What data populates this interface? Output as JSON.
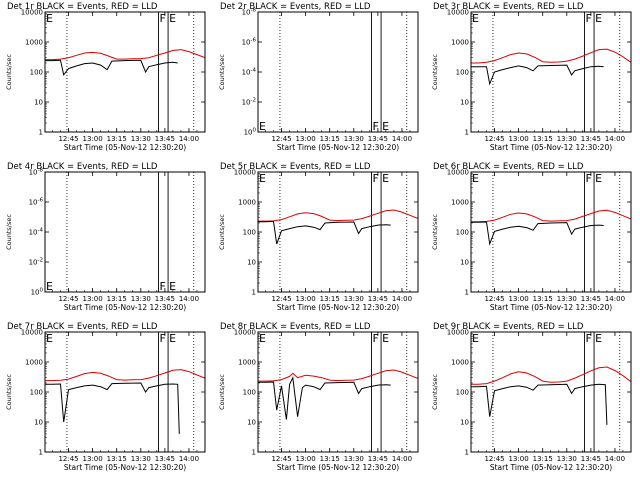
{
  "panel_titles": [
    "Det 1r BLACK = Events, RED = LLD",
    "Det 2r BLACK = Events, RED = LLD",
    "Det 3r BLACK = Events, RED = LLD",
    "Det 4r BLACK = Events, RED = LLD",
    "Det 5r BLACK = Events, RED = LLD",
    "Det 6r BLACK = Events, RED = LLD",
    "Det 7r BLACK = Events, RED = LLD",
    "Det 8r BLACK = Events, RED = LLD",
    "Det 9r BLACK = Events, RED = LLD"
  ],
  "xlabel": "Start Time (05-Nov-12 12:30:20)",
  "ylabel": "Counts/sec",
  "x_tick_labels": [
    "12:45",
    "13:00",
    "13:15",
    "13:30",
    "13:45",
    "14:00"
  ],
  "y_tick_labels_normal": [
    "1",
    "10",
    "100",
    "1000",
    "10000"
  ],
  "y_tick_labels_tiny": [
    "10^0",
    "10^-2",
    "10^-4",
    "10^-6",
    "10^-8"
  ],
  "markers": {
    "flare": "F",
    "end": "E"
  },
  "colors": {
    "events": "#000000",
    "lld": "#e00000",
    "axis": "#000000",
    "background": "#ffffff"
  },
  "chart_data": [
    {
      "type": "line",
      "detector": "1r",
      "title": "Det 1r BLACK = Events, RED = LLD",
      "xlabel": "Start Time (05-Nov-12 12:30:20)",
      "ylabel": "Counts/sec",
      "x_range": [
        "12:30:20",
        "14:10"
      ],
      "y_scale": "log",
      "ylim": [
        1,
        10000
      ],
      "dotted_lines": [
        "12:44",
        "14:03"
      ],
      "solid_lines": [
        "13:41",
        "13:47"
      ],
      "series": [
        {
          "name": "LLD",
          "color": "#e00000",
          "x": [
            "12:30",
            "12:35",
            "12:40",
            "12:45",
            "12:50",
            "12:55",
            "13:00",
            "13:05",
            "13:10",
            "13:15",
            "13:20",
            "13:25",
            "13:30",
            "13:35",
            "13:40",
            "13:45",
            "13:50",
            "13:55",
            "14:00",
            "14:05",
            "14:10"
          ],
          "y": [
            260,
            260,
            270,
            300,
            360,
            430,
            450,
            420,
            340,
            270,
            270,
            275,
            280,
            300,
            360,
            430,
            520,
            560,
            480,
            380,
            300
          ]
        },
        {
          "name": "Events",
          "color": "#000000",
          "x": [
            "12:30",
            "12:35",
            "12:40",
            "12:42",
            "12:45",
            "12:50",
            "12:55",
            "13:00",
            "13:05",
            "13:09",
            "13:12",
            "13:20",
            "13:30",
            "13:33",
            "13:35",
            "13:40",
            "13:45",
            "13:50",
            "13:53"
          ],
          "y": [
            240,
            240,
            245,
            80,
            130,
            160,
            190,
            200,
            170,
            120,
            230,
            240,
            245,
            100,
            150,
            175,
            200,
            210,
            200
          ]
        }
      ]
    },
    {
      "type": "line",
      "detector": "2r",
      "title": "Det 2r BLACK = Events, RED = LLD",
      "xlabel": "Start Time (05-Nov-12 12:30:20)",
      "ylabel": "Counts/sec",
      "x_range": [
        "12:30:20",
        "14:10"
      ],
      "y_scale": "log",
      "ylim": [
        1,
        1e-08
      ],
      "dotted_lines": [
        "12:44",
        "14:03"
      ],
      "solid_lines": [
        "13:41",
        "13:47"
      ],
      "series": []
    },
    {
      "type": "line",
      "detector": "3r",
      "title": "Det 3r BLACK = Events, RED = LLD",
      "xlabel": "Start Time (05-Nov-12 12:30:20)",
      "ylabel": "Counts/sec",
      "x_range": [
        "12:30:20",
        "14:10"
      ],
      "y_scale": "log",
      "ylim": [
        1,
        10000
      ],
      "dotted_lines": [
        "12:44",
        "14:03"
      ],
      "solid_lines": [
        "13:41",
        "13:47"
      ],
      "series": [
        {
          "name": "LLD",
          "color": "#e00000",
          "x": [
            "12:30",
            "12:35",
            "12:40",
            "12:45",
            "12:50",
            "12:55",
            "13:00",
            "13:05",
            "13:10",
            "13:15",
            "13:20",
            "13:25",
            "13:30",
            "13:35",
            "13:40",
            "13:45",
            "13:50",
            "13:55",
            "14:00",
            "14:05",
            "14:10"
          ],
          "y": [
            200,
            200,
            210,
            240,
            300,
            380,
            430,
            400,
            310,
            220,
            210,
            215,
            230,
            270,
            340,
            440,
            560,
            580,
            460,
            320,
            210
          ]
        },
        {
          "name": "Events",
          "color": "#000000",
          "x": [
            "12:30",
            "12:35",
            "12:40",
            "12:42",
            "12:45",
            "12:50",
            "12:55",
            "13:00",
            "13:05",
            "13:09",
            "13:12",
            "13:20",
            "13:30",
            "13:33",
            "13:35",
            "13:40",
            "13:45",
            "13:50",
            "13:53"
          ],
          "y": [
            150,
            150,
            150,
            40,
            100,
            120,
            140,
            160,
            140,
            110,
            160,
            165,
            170,
            80,
            110,
            130,
            150,
            155,
            150
          ]
        }
      ]
    },
    {
      "type": "line",
      "detector": "4r",
      "title": "Det 4r BLACK = Events, RED = LLD",
      "xlabel": "Start Time (05-Nov-12 12:30:20)",
      "ylabel": "Counts/sec",
      "x_range": [
        "12:30:20",
        "14:10"
      ],
      "y_scale": "log",
      "ylim": [
        1,
        1e-08
      ],
      "dotted_lines": [
        "12:44",
        "14:03"
      ],
      "solid_lines": [
        "13:41",
        "13:47"
      ],
      "series": []
    },
    {
      "type": "line",
      "detector": "5r",
      "title": "Det 5r BLACK = Events, RED = LLD",
      "xlabel": "Start Time (05-Nov-12 12:30:20)",
      "ylabel": "Counts/sec",
      "x_range": [
        "12:30:20",
        "14:10"
      ],
      "y_scale": "log",
      "ylim": [
        1,
        10000
      ],
      "dotted_lines": [
        "12:44",
        "14:03"
      ],
      "solid_lines": [
        "13:41",
        "13:47"
      ],
      "series": [
        {
          "name": "LLD",
          "color": "#e00000",
          "x": [
            "12:30",
            "12:35",
            "12:40",
            "12:45",
            "12:50",
            "12:55",
            "13:00",
            "13:05",
            "13:10",
            "13:15",
            "13:20",
            "13:25",
            "13:30",
            "13:35",
            "13:40",
            "13:45",
            "13:50",
            "13:55",
            "14:00",
            "14:05",
            "14:10"
          ],
          "y": [
            230,
            230,
            235,
            260,
            320,
            400,
            440,
            410,
            330,
            250,
            240,
            245,
            250,
            280,
            340,
            420,
            510,
            540,
            460,
            360,
            280
          ]
        },
        {
          "name": "Events",
          "color": "#000000",
          "x": [
            "12:30",
            "12:35",
            "12:40",
            "12:42",
            "12:45",
            "12:50",
            "12:55",
            "13:00",
            "13:05",
            "13:09",
            "13:12",
            "13:20",
            "13:30",
            "13:33",
            "13:35",
            "13:40",
            "13:45",
            "13:50",
            "13:53"
          ],
          "y": [
            220,
            220,
            225,
            40,
            110,
            130,
            150,
            160,
            145,
            120,
            200,
            210,
            215,
            90,
            130,
            150,
            170,
            175,
            170
          ]
        }
      ]
    },
    {
      "type": "line",
      "detector": "6r",
      "title": "Det 6r BLACK = Events, RED = LLD",
      "xlabel": "Start Time (05-Nov-12 12:30:20)",
      "ylabel": "Counts/sec",
      "x_range": [
        "12:30:20",
        "14:10"
      ],
      "y_scale": "log",
      "ylim": [
        1,
        10000
      ],
      "dotted_lines": [
        "12:44",
        "14:03"
      ],
      "solid_lines": [
        "13:41",
        "13:47"
      ],
      "series": [
        {
          "name": "LLD",
          "color": "#e00000",
          "x": [
            "12:30",
            "12:35",
            "12:40",
            "12:45",
            "12:50",
            "12:55",
            "13:00",
            "13:05",
            "13:10",
            "13:15",
            "13:20",
            "13:25",
            "13:30",
            "13:35",
            "13:40",
            "13:45",
            "13:50",
            "13:55",
            "14:00",
            "14:05",
            "14:10"
          ],
          "y": [
            220,
            220,
            225,
            250,
            310,
            390,
            430,
            400,
            320,
            240,
            230,
            235,
            240,
            270,
            330,
            410,
            500,
            530,
            450,
            350,
            270
          ]
        },
        {
          "name": "Events",
          "color": "#000000",
          "x": [
            "12:30",
            "12:35",
            "12:40",
            "12:42",
            "12:45",
            "12:50",
            "12:55",
            "13:00",
            "13:05",
            "13:09",
            "13:12",
            "13:20",
            "13:30",
            "13:33",
            "13:35",
            "13:40",
            "13:45",
            "13:50",
            "13:53"
          ],
          "y": [
            210,
            210,
            215,
            40,
            105,
            125,
            145,
            155,
            140,
            115,
            190,
            200,
            205,
            85,
            125,
            145,
            165,
            170,
            165
          ]
        }
      ]
    },
    {
      "type": "line",
      "detector": "7r",
      "title": "Det 7r BLACK = Events, RED = LLD",
      "xlabel": "Start Time (05-Nov-12 12:30:20)",
      "ylabel": "Counts/sec",
      "x_range": [
        "12:30:20",
        "14:10"
      ],
      "y_scale": "log",
      "ylim": [
        1,
        10000
      ],
      "dotted_lines": [
        "12:44",
        "14:03"
      ],
      "solid_lines": [
        "13:41",
        "13:47"
      ],
      "series": [
        {
          "name": "LLD",
          "color": "#e00000",
          "x": [
            "12:30",
            "12:35",
            "12:40",
            "12:45",
            "12:50",
            "12:55",
            "13:00",
            "13:05",
            "13:10",
            "13:15",
            "13:20",
            "13:25",
            "13:30",
            "13:35",
            "13:40",
            "13:45",
            "13:50",
            "13:55",
            "14:00",
            "14:05",
            "14:10"
          ],
          "y": [
            240,
            240,
            245,
            270,
            330,
            410,
            450,
            420,
            340,
            260,
            250,
            255,
            260,
            290,
            350,
            430,
            530,
            560,
            480,
            370,
            290
          ]
        },
        {
          "name": "Events",
          "color": "#000000",
          "x": [
            "12:30",
            "12:35",
            "12:40",
            "12:42",
            "12:45",
            "12:50",
            "12:55",
            "13:00",
            "13:05",
            "13:09",
            "13:12",
            "13:20",
            "13:30",
            "13:33",
            "13:35",
            "13:40",
            "13:45",
            "13:50",
            "13:53",
            "13:54"
          ],
          "y": [
            180,
            180,
            185,
            10,
            120,
            140,
            160,
            170,
            150,
            120,
            190,
            195,
            200,
            100,
            140,
            160,
            180,
            185,
            180,
            4
          ]
        }
      ]
    },
    {
      "type": "line",
      "detector": "8r",
      "title": "Det 8r BLACK = Events, RED = LLD",
      "xlabel": "Start Time (05-Nov-12 12:30:20)",
      "ylabel": "Counts/sec",
      "x_range": [
        "12:30:20",
        "14:10"
      ],
      "y_scale": "log",
      "ylim": [
        1,
        10000
      ],
      "dotted_lines": [
        "12:44",
        "14:03"
      ],
      "solid_lines": [
        "13:41",
        "13:47"
      ],
      "series": [
        {
          "name": "LLD",
          "color": "#e00000",
          "x": [
            "12:30",
            "12:35",
            "12:40",
            "12:45",
            "12:50",
            "12:52",
            "12:55",
            "13:00",
            "13:05",
            "13:10",
            "13:15",
            "13:20",
            "13:25",
            "13:30",
            "13:35",
            "13:40",
            "13:45",
            "13:50",
            "13:55",
            "14:00",
            "14:05",
            "14:10"
          ],
          "y": [
            230,
            230,
            235,
            260,
            330,
            420,
            300,
            360,
            340,
            300,
            250,
            240,
            245,
            250,
            280,
            340,
            420,
            510,
            540,
            460,
            360,
            280
          ]
        },
        {
          "name": "Events",
          "color": "#000000",
          "x": [
            "12:30",
            "12:35",
            "12:40",
            "12:42",
            "12:45",
            "12:48",
            "12:50",
            "12:52",
            "12:55",
            "12:58",
            "13:00",
            "13:05",
            "13:09",
            "13:12",
            "13:20",
            "13:30",
            "13:33",
            "13:35",
            "13:40",
            "13:45",
            "13:50",
            "13:53"
          ],
          "y": [
            210,
            210,
            215,
            25,
            160,
            12,
            180,
            300,
            15,
            140,
            170,
            150,
            120,
            200,
            205,
            210,
            90,
            130,
            150,
            170,
            175,
            170
          ]
        }
      ]
    },
    {
      "type": "line",
      "detector": "9r",
      "title": "Det 9r BLACK = Events, RED = LLD",
      "xlabel": "Start Time (05-Nov-12 12:30:20)",
      "ylabel": "Counts/sec",
      "x_range": [
        "12:30:20",
        "14:10"
      ],
      "y_scale": "log",
      "ylim": [
        1,
        10000
      ],
      "dotted_lines": [
        "12:44",
        "14:03"
      ],
      "solid_lines": [
        "13:41",
        "13:47"
      ],
      "series": [
        {
          "name": "LLD",
          "color": "#e00000",
          "x": [
            "12:30",
            "12:35",
            "12:40",
            "12:45",
            "12:50",
            "12:55",
            "13:00",
            "13:05",
            "13:10",
            "13:15",
            "13:20",
            "13:25",
            "13:30",
            "13:35",
            "13:40",
            "13:45",
            "13:50",
            "13:55",
            "14:00",
            "14:05",
            "14:10"
          ],
          "y": [
            180,
            180,
            190,
            230,
            300,
            400,
            470,
            430,
            330,
            230,
            210,
            215,
            230,
            290,
            380,
            510,
            640,
            680,
            520,
            350,
            220
          ]
        },
        {
          "name": "Events",
          "color": "#000000",
          "x": [
            "12:30",
            "12:35",
            "12:40",
            "12:42",
            "12:45",
            "12:50",
            "12:55",
            "13:00",
            "13:05",
            "13:09",
            "13:12",
            "13:20",
            "13:30",
            "13:33",
            "13:35",
            "13:40",
            "13:45",
            "13:50",
            "13:54",
            "13:55"
          ],
          "y": [
            150,
            150,
            155,
            15,
            110,
            130,
            150,
            160,
            145,
            115,
            170,
            175,
            180,
            90,
            130,
            150,
            170,
            180,
            175,
            8
          ]
        }
      ]
    }
  ]
}
